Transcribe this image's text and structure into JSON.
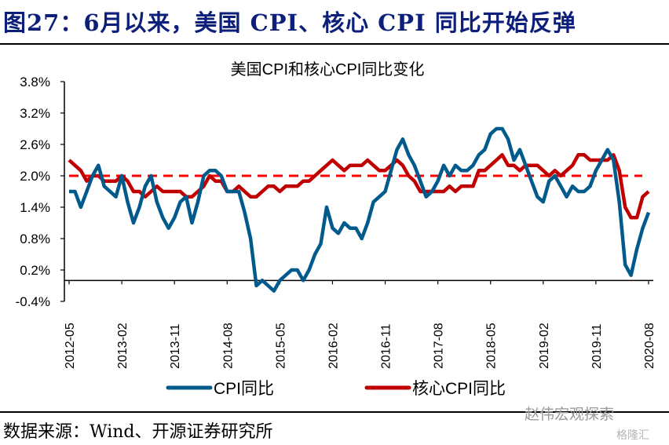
{
  "header": {
    "title": "图27：6月以来，美国 CPI、核心 CPI 同比开始反弹"
  },
  "footer": {
    "source": "数据来源：Wind、开源证券研究所"
  },
  "watermark": {
    "account": "赵伟宏观探索",
    "site": "格隆汇"
  },
  "colors": {
    "cpi": "#005a8c",
    "core": "#c00000",
    "threshold": "#ff0000",
    "title": "#0c1f7a"
  },
  "chart_data": {
    "type": "line",
    "title": "美国CPI和核心CPI同比变化",
    "xlabel": "",
    "ylabel": "",
    "ylim": [
      -0.4,
      3.8
    ],
    "yticks": [
      "3.8%",
      "3.2%",
      "2.6%",
      "2.0%",
      "1.4%",
      "0.8%",
      "0.2%",
      "-0.4%"
    ],
    "ytick_values": [
      3.8,
      3.2,
      2.6,
      2.0,
      1.4,
      0.8,
      0.2,
      -0.4
    ],
    "x_start": "2012-05",
    "x_end": "2020-08",
    "xticks": [
      "2012-05",
      "2013-02",
      "2013-11",
      "2014-08",
      "2015-05",
      "2016-02",
      "2016-11",
      "2017-08",
      "2018-05",
      "2019-02",
      "2019-11",
      "2020-08"
    ],
    "reference_line": {
      "value": 2.0,
      "style": "dashed"
    },
    "legend_position": "bottom",
    "series": [
      {
        "name": "CPI同比",
        "values": [
          1.7,
          1.7,
          1.4,
          1.7,
          2.0,
          2.2,
          1.8,
          1.7,
          1.6,
          2.0,
          1.5,
          1.1,
          1.4,
          1.8,
          2.0,
          1.5,
          1.2,
          1.0,
          1.2,
          1.5,
          1.6,
          1.1,
          1.5,
          2.0,
          2.1,
          2.1,
          2.0,
          1.7,
          1.7,
          1.7,
          1.3,
          0.8,
          -0.1,
          0.0,
          -0.1,
          -0.2,
          0.0,
          0.1,
          0.2,
          0.2,
          0.0,
          0.2,
          0.5,
          0.7,
          1.4,
          1.0,
          0.9,
          1.1,
          1.0,
          1.0,
          0.8,
          1.1,
          1.5,
          1.6,
          1.7,
          2.1,
          2.5,
          2.7,
          2.4,
          2.2,
          1.9,
          1.6,
          1.7,
          1.9,
          2.2,
          2.0,
          2.2,
          2.1,
          2.1,
          2.2,
          2.4,
          2.5,
          2.8,
          2.9,
          2.9,
          2.7,
          2.3,
          2.5,
          2.2,
          1.9,
          1.6,
          1.5,
          1.9,
          2.0,
          1.8,
          1.6,
          1.8,
          1.7,
          1.7,
          1.8,
          2.1,
          2.3,
          2.5,
          2.3,
          1.5,
          0.3,
          0.1,
          0.6,
          1.0,
          1.3
        ]
      },
      {
        "name": "核心CPI同比",
        "values": [
          2.3,
          2.2,
          2.1,
          1.9,
          2.0,
          2.0,
          1.9,
          1.9,
          1.9,
          2.0,
          1.9,
          1.7,
          1.7,
          1.6,
          1.7,
          1.8,
          1.7,
          1.7,
          1.7,
          1.7,
          1.6,
          1.6,
          1.7,
          1.8,
          2.0,
          1.9,
          1.9,
          1.7,
          1.7,
          1.8,
          1.7,
          1.6,
          1.6,
          1.7,
          1.8,
          1.8,
          1.7,
          1.8,
          1.8,
          1.8,
          1.9,
          1.9,
          2.0,
          2.1,
          2.2,
          2.3,
          2.2,
          2.1,
          2.2,
          2.2,
          2.2,
          2.3,
          2.2,
          2.1,
          2.1,
          2.2,
          2.3,
          2.2,
          2.0,
          1.9,
          1.7,
          1.7,
          1.7,
          1.7,
          1.7,
          1.8,
          1.7,
          1.8,
          1.8,
          1.8,
          2.1,
          2.1,
          2.2,
          2.3,
          2.4,
          2.2,
          2.2,
          2.1,
          2.2,
          2.2,
          2.2,
          2.1,
          2.0,
          2.1,
          2.0,
          2.1,
          2.2,
          2.4,
          2.4,
          2.3,
          2.3,
          2.3,
          2.3,
          2.4,
          2.1,
          1.4,
          1.2,
          1.2,
          1.6,
          1.7
        ]
      }
    ]
  }
}
